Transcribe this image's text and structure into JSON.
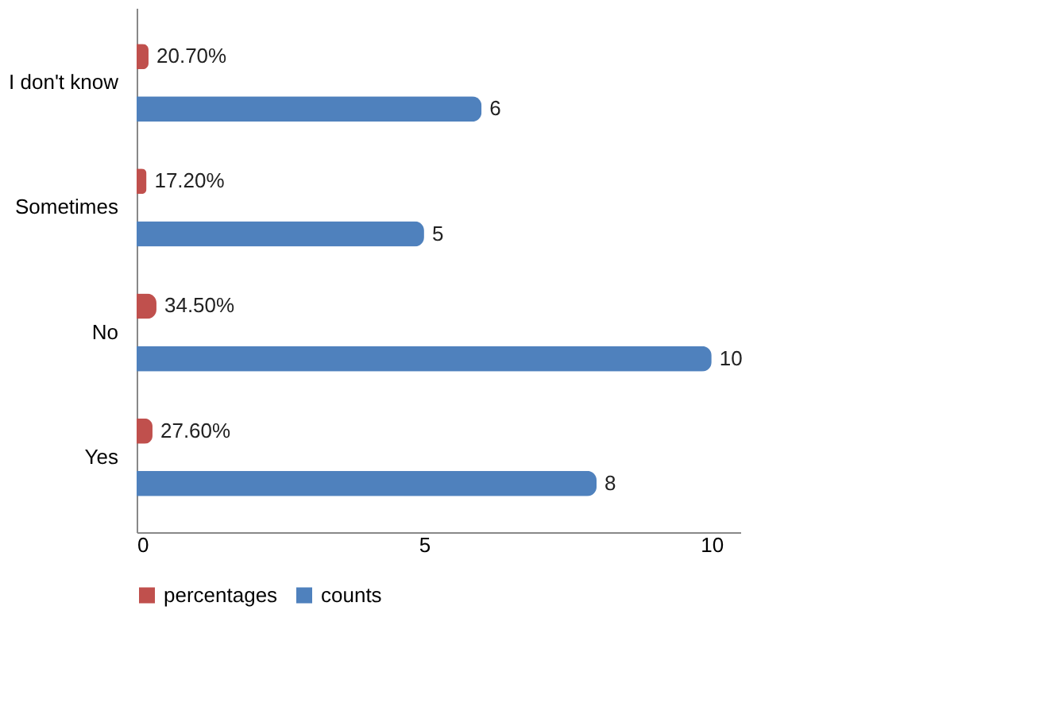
{
  "chart_data": {
    "type": "bar",
    "orientation": "horizontal",
    "categories": [
      "I don't know",
      "Sometimes",
      "No",
      "Yes"
    ],
    "series": [
      {
        "name": "percentages",
        "color": "#c0504d",
        "values": [
          0.207,
          0.172,
          0.345,
          0.276
        ],
        "value_labels": [
          "20.70%",
          "17.20%",
          "34.50%",
          "27.60%"
        ]
      },
      {
        "name": "counts",
        "color": "#4f81bd",
        "values": [
          6,
          5,
          10,
          8
        ],
        "value_labels": [
          "6",
          "5",
          "10",
          "8"
        ]
      }
    ],
    "xlim": [
      0,
      10.5
    ],
    "xticks": [
      0,
      5,
      10
    ],
    "grid": false,
    "legend": "bottom"
  }
}
